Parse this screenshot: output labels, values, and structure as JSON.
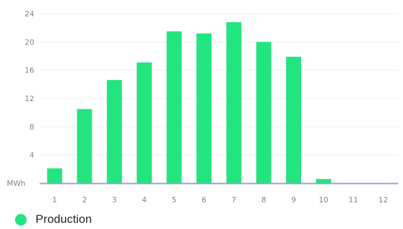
{
  "chart_data": {
    "type": "bar",
    "unit_label": "MWh",
    "categories": [
      "1",
      "2",
      "3",
      "4",
      "5",
      "6",
      "7",
      "8",
      "9",
      "10",
      "11",
      "12"
    ],
    "series": [
      {
        "name": "Production",
        "values": [
          2.1,
          10.5,
          14.6,
          17.1,
          21.5,
          21.2,
          22.8,
          20.0,
          17.9,
          0.6,
          0,
          0
        ]
      }
    ],
    "ylim": [
      0,
      24
    ],
    "y_ticks": [
      "4",
      "8",
      "12",
      "16",
      "20",
      "24"
    ],
    "grid": true,
    "legend_position": "bottom-left",
    "colors": {
      "bar": "#23e57f",
      "grid": "#eef0f4",
      "axis": "#9aa1c2",
      "text": "#7d8492"
    }
  }
}
